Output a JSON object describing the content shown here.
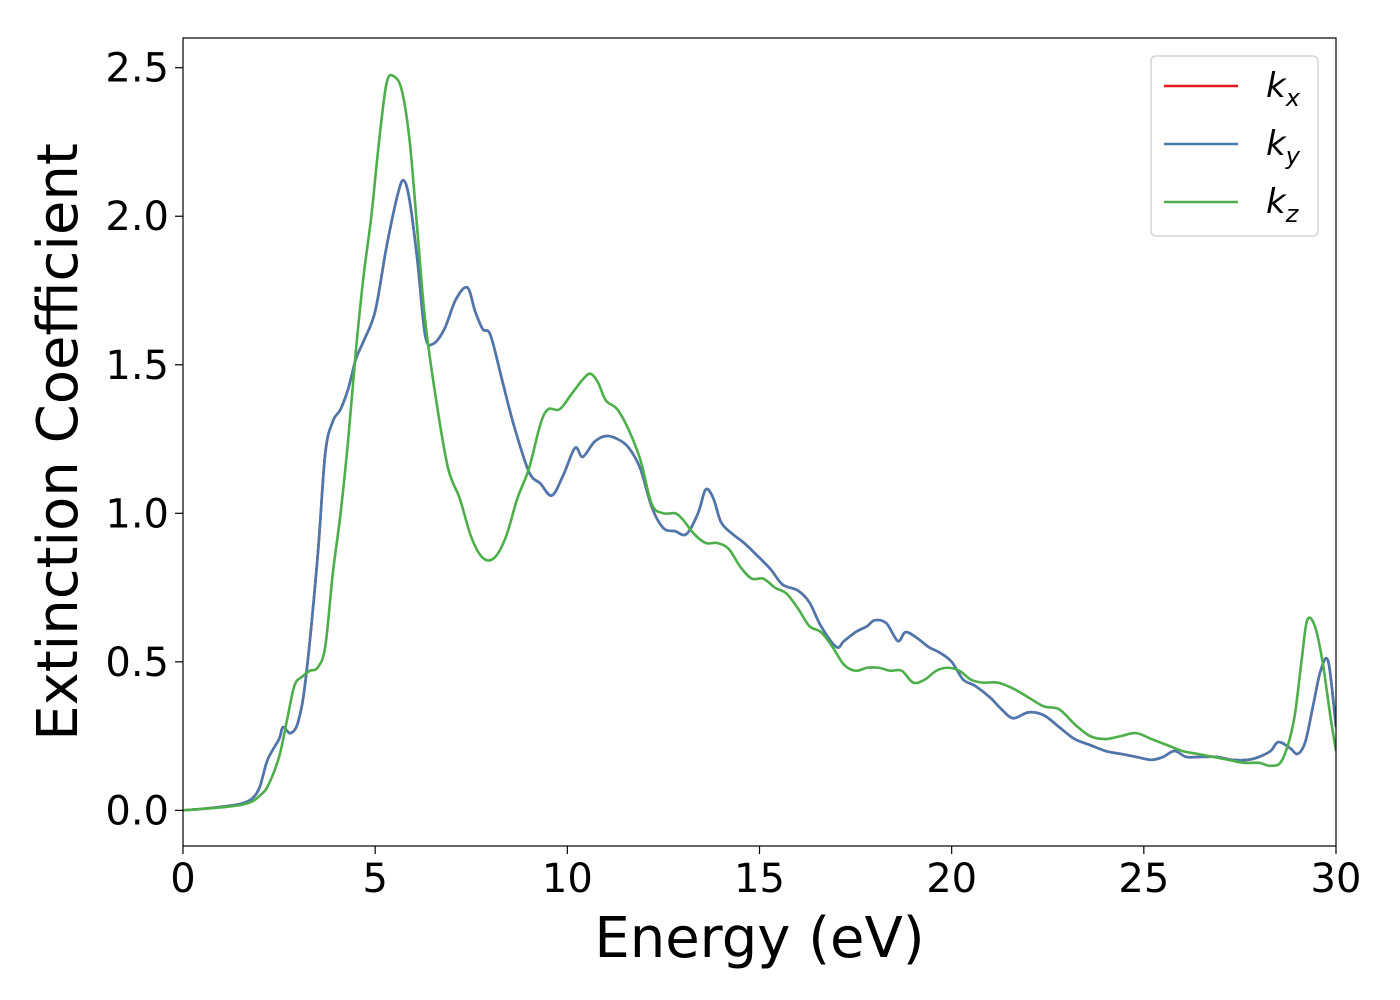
{
  "chart_data": {
    "type": "line",
    "xlabel": "Energy (eV)",
    "ylabel": "Extinction Coefficient",
    "xlim": [
      0,
      30
    ],
    "ylim": [
      -0.12,
      2.6
    ],
    "xticks": [
      0,
      5,
      10,
      15,
      20,
      25,
      30
    ],
    "xtick_labels": [
      "0",
      "5",
      "10",
      "15",
      "20",
      "25",
      "30"
    ],
    "yticks": [
      0.0,
      0.5,
      1.0,
      1.5,
      2.0,
      2.5
    ],
    "ytick_labels": [
      "0.0",
      "0.5",
      "1.0",
      "1.5",
      "2.0",
      "2.5"
    ],
    "grid": false,
    "legend_position": "top-right",
    "series": [
      {
        "name": "k_x",
        "label_base": "k",
        "label_sub": "x",
        "color": "#e41a1c",
        "x": [
          0,
          0.5,
          1.0,
          1.5,
          1.8,
          2.0,
          2.2,
          2.5,
          2.6,
          2.8,
          3.0,
          3.2,
          3.5,
          3.7,
          3.9,
          4.1,
          4.3,
          4.5,
          4.7,
          5.0,
          5.3,
          5.6,
          5.75,
          5.9,
          6.1,
          6.3,
          6.5,
          6.8,
          7.1,
          7.4,
          7.6,
          7.8,
          8.0,
          8.3,
          8.6,
          9.0,
          9.3,
          9.6,
          9.9,
          10.2,
          10.4,
          10.7,
          11.0,
          11.3,
          11.6,
          11.9,
          12.2,
          12.5,
          12.8,
          13.1,
          13.4,
          13.6,
          13.8,
          14.0,
          14.3,
          14.6,
          15.0,
          15.3,
          15.6,
          16.0,
          16.3,
          16.6,
          17.0,
          17.2,
          17.5,
          17.8,
          18.0,
          18.3,
          18.6,
          18.8,
          19.1,
          19.4,
          19.7,
          20.0,
          20.3,
          20.6,
          21.0,
          21.3,
          21.6,
          22.0,
          22.4,
          22.8,
          23.2,
          23.6,
          24.0,
          24.4,
          24.8,
          25.2,
          25.5,
          25.8,
          26.1,
          26.5,
          26.9,
          27.3,
          27.7,
          28.0,
          28.3,
          28.5,
          28.8,
          29.0,
          29.2,
          29.4,
          29.6,
          29.8,
          30.0
        ],
        "y": [
          0.0,
          0.005,
          0.012,
          0.022,
          0.04,
          0.08,
          0.17,
          0.24,
          0.28,
          0.26,
          0.3,
          0.45,
          0.85,
          1.2,
          1.31,
          1.35,
          1.42,
          1.52,
          1.58,
          1.68,
          1.9,
          2.08,
          2.12,
          2.05,
          1.85,
          1.6,
          1.57,
          1.62,
          1.72,
          1.76,
          1.68,
          1.62,
          1.6,
          1.45,
          1.3,
          1.14,
          1.1,
          1.06,
          1.13,
          1.22,
          1.19,
          1.24,
          1.26,
          1.25,
          1.22,
          1.15,
          1.02,
          0.95,
          0.94,
          0.93,
          1.0,
          1.08,
          1.05,
          0.97,
          0.93,
          0.9,
          0.85,
          0.81,
          0.76,
          0.74,
          0.7,
          0.62,
          0.55,
          0.57,
          0.6,
          0.62,
          0.64,
          0.63,
          0.57,
          0.6,
          0.58,
          0.55,
          0.53,
          0.5,
          0.44,
          0.42,
          0.38,
          0.34,
          0.31,
          0.33,
          0.32,
          0.28,
          0.24,
          0.22,
          0.2,
          0.19,
          0.18,
          0.17,
          0.18,
          0.2,
          0.18,
          0.18,
          0.18,
          0.17,
          0.17,
          0.18,
          0.2,
          0.23,
          0.21,
          0.19,
          0.23,
          0.35,
          0.47,
          0.5,
          0.28
        ]
      },
      {
        "name": "k_y",
        "label_base": "k",
        "label_sub": "y",
        "color": "#4a79b0",
        "x": [
          0,
          0.5,
          1.0,
          1.5,
          1.8,
          2.0,
          2.2,
          2.5,
          2.6,
          2.8,
          3.0,
          3.2,
          3.5,
          3.7,
          3.9,
          4.1,
          4.3,
          4.5,
          4.7,
          5.0,
          5.3,
          5.6,
          5.75,
          5.9,
          6.1,
          6.3,
          6.5,
          6.8,
          7.1,
          7.4,
          7.6,
          7.8,
          8.0,
          8.3,
          8.6,
          9.0,
          9.3,
          9.6,
          9.9,
          10.2,
          10.4,
          10.7,
          11.0,
          11.3,
          11.6,
          11.9,
          12.2,
          12.5,
          12.8,
          13.1,
          13.4,
          13.6,
          13.8,
          14.0,
          14.3,
          14.6,
          15.0,
          15.3,
          15.6,
          16.0,
          16.3,
          16.6,
          17.0,
          17.2,
          17.5,
          17.8,
          18.0,
          18.3,
          18.6,
          18.8,
          19.1,
          19.4,
          19.7,
          20.0,
          20.3,
          20.6,
          21.0,
          21.3,
          21.6,
          22.0,
          22.4,
          22.8,
          23.2,
          23.6,
          24.0,
          24.4,
          24.8,
          25.2,
          25.5,
          25.8,
          26.1,
          26.5,
          26.9,
          27.3,
          27.7,
          28.0,
          28.3,
          28.5,
          28.8,
          29.0,
          29.2,
          29.4,
          29.6,
          29.8,
          30.0
        ],
        "y": [
          0.0,
          0.005,
          0.012,
          0.022,
          0.04,
          0.08,
          0.17,
          0.24,
          0.28,
          0.26,
          0.3,
          0.45,
          0.85,
          1.2,
          1.31,
          1.35,
          1.42,
          1.52,
          1.58,
          1.68,
          1.9,
          2.08,
          2.12,
          2.05,
          1.85,
          1.6,
          1.57,
          1.62,
          1.72,
          1.76,
          1.68,
          1.62,
          1.6,
          1.45,
          1.3,
          1.14,
          1.1,
          1.06,
          1.13,
          1.22,
          1.19,
          1.24,
          1.26,
          1.25,
          1.22,
          1.15,
          1.02,
          0.95,
          0.94,
          0.93,
          1.0,
          1.08,
          1.05,
          0.97,
          0.93,
          0.9,
          0.85,
          0.81,
          0.76,
          0.74,
          0.7,
          0.62,
          0.55,
          0.57,
          0.6,
          0.62,
          0.64,
          0.63,
          0.57,
          0.6,
          0.58,
          0.55,
          0.53,
          0.5,
          0.44,
          0.42,
          0.38,
          0.34,
          0.31,
          0.33,
          0.32,
          0.28,
          0.24,
          0.22,
          0.2,
          0.19,
          0.18,
          0.17,
          0.18,
          0.2,
          0.18,
          0.18,
          0.18,
          0.17,
          0.17,
          0.18,
          0.2,
          0.23,
          0.21,
          0.19,
          0.23,
          0.35,
          0.47,
          0.5,
          0.28
        ]
      },
      {
        "name": "k_z",
        "label_base": "k",
        "label_sub": "z",
        "color": "#4daf4a",
        "x": [
          0,
          0.5,
          1.0,
          1.5,
          1.8,
          2.0,
          2.2,
          2.5,
          2.7,
          2.9,
          3.1,
          3.3,
          3.5,
          3.7,
          3.9,
          4.1,
          4.3,
          4.5,
          4.7,
          4.9,
          5.1,
          5.3,
          5.5,
          5.7,
          5.9,
          6.1,
          6.3,
          6.6,
          6.9,
          7.2,
          7.5,
          7.8,
          8.1,
          8.4,
          8.7,
          9.0,
          9.3,
          9.5,
          9.8,
          10.1,
          10.4,
          10.6,
          10.8,
          11.0,
          11.3,
          11.6,
          11.9,
          12.2,
          12.5,
          12.8,
          13.0,
          13.3,
          13.6,
          13.9,
          14.2,
          14.5,
          14.8,
          15.1,
          15.4,
          15.7,
          16.0,
          16.3,
          16.6,
          16.9,
          17.2,
          17.5,
          17.8,
          18.1,
          18.4,
          18.7,
          19.0,
          19.3,
          19.6,
          19.9,
          20.2,
          20.5,
          20.8,
          21.2,
          21.6,
          22.0,
          22.4,
          22.8,
          23.2,
          23.6,
          24.0,
          24.4,
          24.8,
          25.2,
          25.6,
          26.0,
          26.4,
          26.8,
          27.2,
          27.6,
          28.0,
          28.3,
          28.6,
          28.9,
          29.1,
          29.25,
          29.45,
          29.65,
          29.85,
          30.0
        ],
        "y": [
          0.0,
          0.005,
          0.01,
          0.018,
          0.03,
          0.05,
          0.08,
          0.18,
          0.3,
          0.42,
          0.45,
          0.47,
          0.48,
          0.55,
          0.8,
          1.0,
          1.25,
          1.55,
          1.8,
          2.0,
          2.25,
          2.45,
          2.47,
          2.42,
          2.25,
          1.95,
          1.65,
          1.37,
          1.15,
          1.05,
          0.92,
          0.85,
          0.85,
          0.92,
          1.05,
          1.15,
          1.3,
          1.35,
          1.35,
          1.4,
          1.45,
          1.47,
          1.44,
          1.38,
          1.35,
          1.28,
          1.18,
          1.03,
          1.0,
          1.0,
          0.98,
          0.93,
          0.9,
          0.9,
          0.88,
          0.82,
          0.78,
          0.78,
          0.75,
          0.73,
          0.68,
          0.62,
          0.6,
          0.55,
          0.49,
          0.47,
          0.48,
          0.48,
          0.47,
          0.47,
          0.43,
          0.44,
          0.47,
          0.48,
          0.47,
          0.44,
          0.43,
          0.43,
          0.41,
          0.38,
          0.35,
          0.34,
          0.29,
          0.25,
          0.24,
          0.25,
          0.26,
          0.24,
          0.22,
          0.2,
          0.19,
          0.18,
          0.17,
          0.16,
          0.16,
          0.15,
          0.17,
          0.3,
          0.5,
          0.64,
          0.62,
          0.5,
          0.32,
          0.2
        ]
      }
    ]
  }
}
